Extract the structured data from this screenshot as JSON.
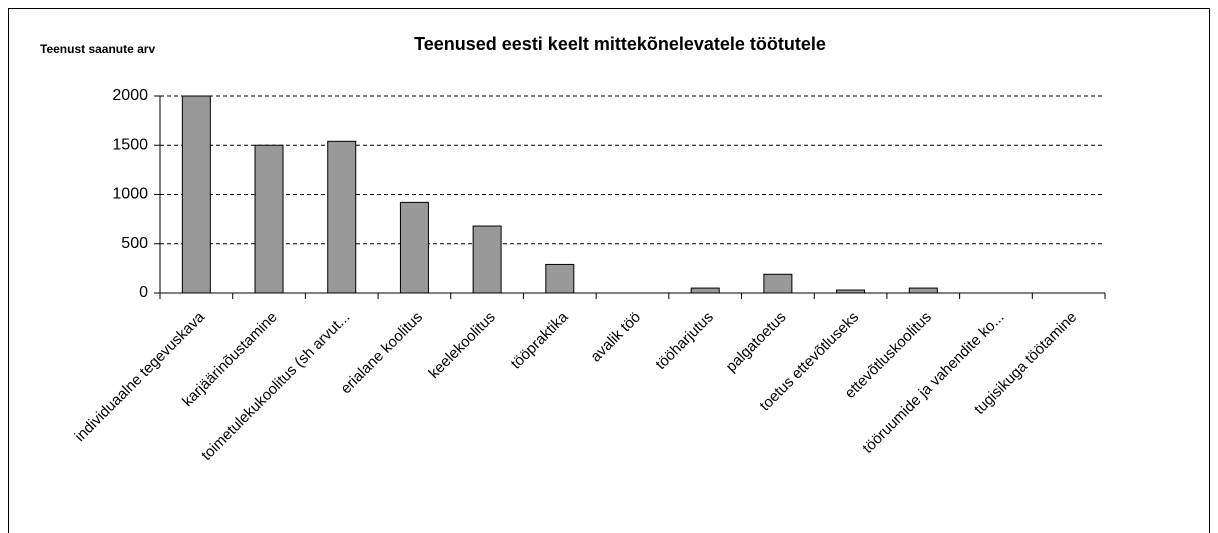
{
  "chart_data": {
    "type": "bar",
    "title": "Teenused eesti keelt mittekõnelevatele töötutele",
    "y_label": "Teenust saanute arv",
    "categories": [
      "individuaalne tegevuskava",
      "karjäärinõustamine",
      "toimetulekukoolitus (sh arvut...",
      "erialane koolitus",
      "keelekoolitus",
      "tööpraktika",
      "avalik töö",
      "tööharjutus",
      "palgatoetus",
      "toetus ettevõtluseks",
      "ettevõtluskoolitus",
      "tööruumide ja vahendite ko...",
      "tugisikuga töötamine"
    ],
    "values": [
      2000,
      1500,
      1540,
      920,
      680,
      290,
      0,
      50,
      190,
      30,
      50,
      0,
      0
    ],
    "color": "#999999",
    "ylim": [
      0,
      2000
    ],
    "yticks": [
      0,
      500,
      1000,
      1500,
      2000
    ],
    "grid": true
  }
}
